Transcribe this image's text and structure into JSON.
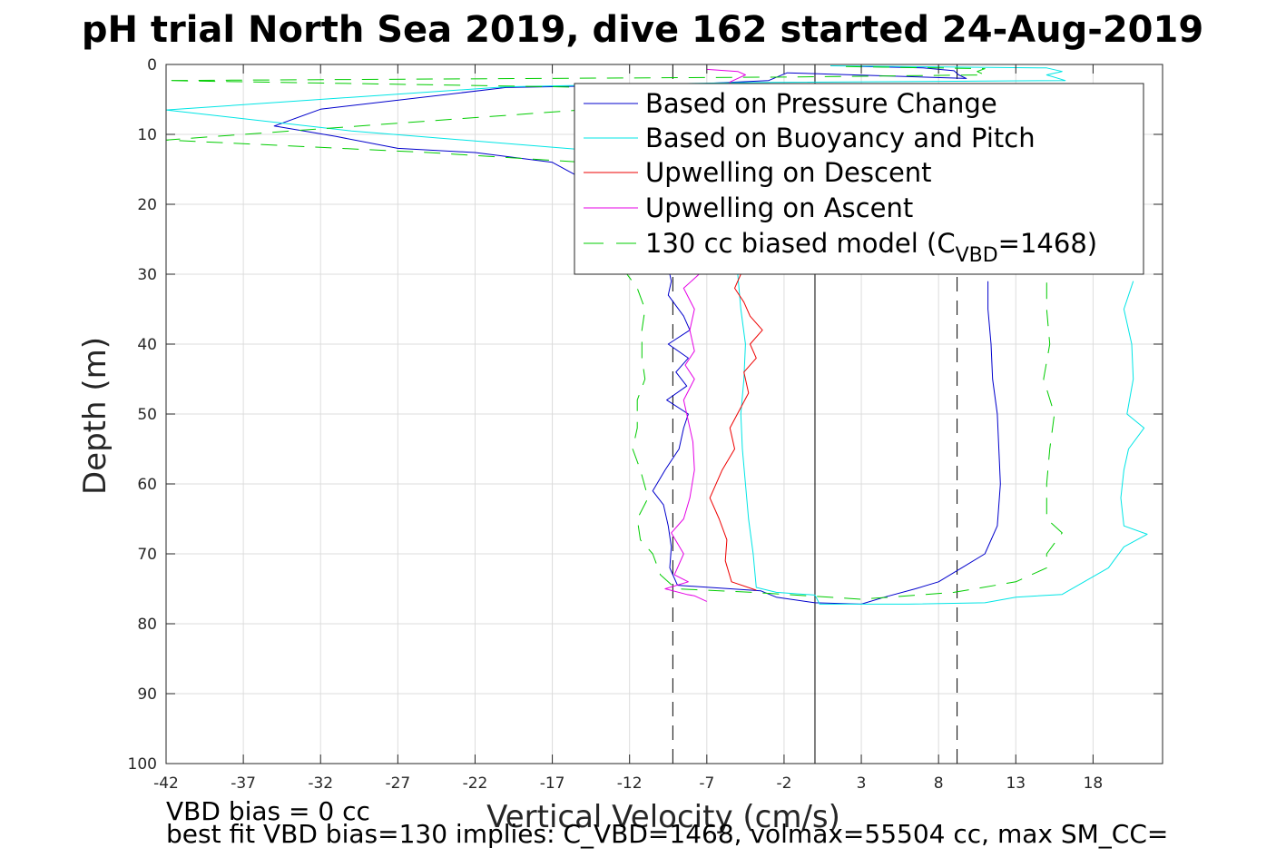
{
  "chart_data": {
    "type": "line",
    "title": "pH trial North Sea 2019, dive 162 started 24-Aug-2019",
    "xlabel": "Vertical Velocity (cm/s)",
    "ylabel": "Depth (m)",
    "xlim": [
      -42,
      22.5
    ],
    "ylim": [
      0,
      100
    ],
    "y_reversed": true,
    "grid": true,
    "legend_position": "top-right",
    "xticks": [
      -42,
      -37,
      -32,
      -27,
      -22,
      -17,
      -12,
      -7,
      -2,
      3,
      8,
      13,
      18
    ],
    "yticks": [
      0,
      10,
      20,
      30,
      40,
      50,
      60,
      70,
      80,
      90,
      100
    ],
    "xtick_labels": [
      "-42",
      "-37",
      "-32",
      "-27",
      "-22",
      "-17",
      "-12",
      "-7",
      "-2",
      "3",
      "8",
      "13",
      "18"
    ],
    "ytick_labels": [
      "0",
      "10",
      "20",
      "30",
      "40",
      "50",
      "60",
      "70",
      "80",
      "90",
      "100"
    ],
    "reference_lines": [
      {
        "x": 0,
        "style": "solid",
        "color": "#000000"
      },
      {
        "x": -9.2,
        "style": "dashed",
        "color": "#000000"
      },
      {
        "x": 9.2,
        "style": "dashed",
        "color": "#000000"
      }
    ],
    "series": [
      {
        "name": "Based on Pressure Change",
        "color": "#0000cc",
        "dash": "solid",
        "points": [
          [
            3,
            0.3
          ],
          [
            7,
            0.5
          ],
          [
            9,
            0.9
          ],
          [
            9.3,
            1.5
          ],
          [
            9.8,
            2
          ],
          [
            -1.8,
            1.2
          ],
          [
            -3,
            2.3
          ],
          [
            -8,
            2.8
          ],
          [
            -20,
            3.3
          ],
          [
            -32,
            6.4
          ],
          [
            -35,
            8.8
          ],
          [
            -31,
            10.3
          ],
          [
            -27,
            12
          ],
          [
            -22,
            12.6
          ],
          [
            -17,
            14
          ],
          [
            -14.5,
            17
          ],
          [
            -11,
            22
          ],
          [
            -10,
            26
          ],
          [
            -9.5,
            29
          ],
          [
            -9.3,
            31
          ],
          [
            -9.5,
            33
          ],
          [
            -8.5,
            36
          ],
          [
            -8.1,
            38
          ],
          [
            -9.5,
            40
          ],
          [
            -8.2,
            42
          ],
          [
            -9,
            44
          ],
          [
            -8.3,
            46
          ],
          [
            -9.6,
            48
          ],
          [
            -8.2,
            50
          ],
          [
            -8.5,
            52
          ],
          [
            -8.8,
            55
          ],
          [
            -9.7,
            58
          ],
          [
            -10.5,
            61
          ],
          [
            -9.8,
            63
          ],
          [
            -9.5,
            66
          ],
          [
            -9.3,
            69
          ],
          [
            -9.4,
            72
          ],
          [
            -8.9,
            74.5
          ],
          [
            -3.5,
            75.3
          ],
          [
            -2.5,
            76.2
          ],
          [
            0,
            77
          ],
          [
            3,
            77.2
          ],
          [
            4.5,
            76.2
          ],
          [
            6.5,
            75
          ],
          [
            8,
            74
          ],
          [
            9.5,
            72
          ],
          [
            11,
            70
          ],
          [
            11.8,
            66
          ],
          [
            12,
            60
          ],
          [
            11.9,
            55
          ],
          [
            11.8,
            50
          ],
          [
            11.5,
            45
          ],
          [
            11.4,
            40
          ],
          [
            11.2,
            35
          ],
          [
            11.2,
            31
          ]
        ]
      },
      {
        "name": "Based on Buoyancy and Pitch",
        "color": "#00e5e5",
        "dash": "solid",
        "points": [
          [
            1,
            0.2
          ],
          [
            15,
            0.5
          ],
          [
            16,
            1
          ],
          [
            15,
            1.5
          ],
          [
            16.2,
            2.3
          ],
          [
            -5,
            2.6
          ],
          [
            -20,
            3.2
          ],
          [
            -42,
            6.5
          ],
          [
            -30,
            9.5
          ],
          [
            -15,
            12.2
          ],
          [
            -14,
            13
          ],
          [
            -13,
            20
          ],
          [
            -7,
            25
          ],
          [
            -5,
            30
          ],
          [
            -4.8,
            35
          ],
          [
            -4.5,
            40
          ],
          [
            -4.6,
            45
          ],
          [
            -4.8,
            50
          ],
          [
            -4.7,
            55
          ],
          [
            -4.5,
            60
          ],
          [
            -4.3,
            65
          ],
          [
            -4,
            70
          ],
          [
            -3.8,
            74.8
          ],
          [
            -2.5,
            75.5
          ],
          [
            0,
            75.9
          ],
          [
            0.3,
            77.2
          ],
          [
            6,
            77.2
          ],
          [
            11,
            77
          ],
          [
            13,
            76.2
          ],
          [
            16,
            75.8
          ],
          [
            19,
            72
          ],
          [
            20,
            69
          ],
          [
            21.5,
            67.2
          ],
          [
            20,
            66
          ],
          [
            19.8,
            62
          ],
          [
            20,
            58
          ],
          [
            20.3,
            55
          ],
          [
            21.3,
            52
          ],
          [
            20.2,
            50
          ],
          [
            20.6,
            45
          ],
          [
            20.5,
            40
          ],
          [
            20,
            35
          ],
          [
            20.6,
            31
          ]
        ]
      },
      {
        "name": "Upwelling on Descent",
        "color": "#ee0000",
        "dash": "solid",
        "points": [
          [
            -4.8,
            30
          ],
          [
            -5.2,
            32
          ],
          [
            -4.6,
            34
          ],
          [
            -4.2,
            36
          ],
          [
            -3.4,
            38
          ],
          [
            -4.2,
            40
          ],
          [
            -3.8,
            42
          ],
          [
            -4.6,
            44
          ],
          [
            -4.3,
            47
          ],
          [
            -5.5,
            52
          ],
          [
            -5.2,
            55
          ],
          [
            -6,
            58
          ],
          [
            -6.8,
            62
          ],
          [
            -6.2,
            65
          ],
          [
            -5.7,
            68
          ],
          [
            -5.8,
            71
          ],
          [
            -5.4,
            74
          ],
          [
            -3.8,
            75.2
          ]
        ]
      },
      {
        "name": "Upwelling on Ascent",
        "color": "#e500e5",
        "dash": "solid",
        "points": [
          [
            -7,
            0.7
          ],
          [
            -5,
            1
          ],
          [
            -4.5,
            1.5
          ],
          [
            -5.5,
            2.5
          ],
          [
            -7.5,
            30
          ],
          [
            -8.5,
            32
          ],
          [
            -7.8,
            35
          ],
          [
            -8.1,
            38
          ],
          [
            -7.8,
            41
          ],
          [
            -8.4,
            43
          ],
          [
            -7.8,
            45
          ],
          [
            -8.5,
            48
          ],
          [
            -8.2,
            51
          ],
          [
            -7.9,
            54
          ],
          [
            -7.8,
            58
          ],
          [
            -8.1,
            62
          ],
          [
            -8.5,
            65
          ],
          [
            -9.3,
            67
          ],
          [
            -8.5,
            70
          ],
          [
            -9.1,
            73
          ],
          [
            -8.2,
            74
          ],
          [
            -9.7,
            75
          ],
          [
            -8.3,
            75.8
          ],
          [
            -7.8,
            76
          ],
          [
            -7,
            76.8
          ]
        ]
      },
      {
        "name": "130 cc biased model (C",
        "color": "#00cc00",
        "dash": "dashed",
        "points": [
          [
            2,
            0.3
          ],
          [
            11,
            0.6
          ],
          [
            10.5,
            1
          ],
          [
            11,
            1.5
          ],
          [
            -2,
            1.8
          ],
          [
            -42,
            2.3
          ],
          [
            -8,
            3.5
          ],
          [
            -12,
            6
          ],
          [
            -42,
            10.8
          ],
          [
            -25,
            12.6
          ],
          [
            -15,
            14
          ],
          [
            -15,
            16
          ],
          [
            -14.5,
            20
          ],
          [
            -13.5,
            25
          ],
          [
            -12.5,
            29
          ],
          [
            -11.5,
            32
          ],
          [
            -11,
            35
          ],
          [
            -11.2,
            38
          ],
          [
            -11.2,
            42
          ],
          [
            -11,
            45
          ],
          [
            -11.5,
            48
          ],
          [
            -11.5,
            52
          ],
          [
            -11.8,
            55
          ],
          [
            -11.3,
            58
          ],
          [
            -10.8,
            62
          ],
          [
            -11.5,
            65
          ],
          [
            -11.3,
            68
          ],
          [
            -10.5,
            70
          ],
          [
            -10,
            73
          ],
          [
            -9,
            75
          ],
          [
            -4,
            75.5
          ],
          [
            3,
            76.5
          ],
          [
            9,
            75.5
          ],
          [
            13,
            74
          ],
          [
            15,
            72
          ],
          [
            15,
            70
          ],
          [
            16,
            67
          ],
          [
            15,
            65
          ],
          [
            15,
            60
          ],
          [
            15.2,
            55
          ],
          [
            15.5,
            50
          ],
          [
            14.8,
            45
          ],
          [
            15.2,
            40
          ],
          [
            15,
            35
          ],
          [
            15,
            31
          ]
        ]
      }
    ],
    "legend": {
      "series_names": [
        "Based on Pressure Change",
        "Based on Buoyancy and Pitch",
        "Upwelling on Descent",
        "Upwelling on Ascent",
        "130 cc biased model (C"
      ],
      "model_subscript": "VBD",
      "model_suffix": "=1468)"
    },
    "annotations": [
      "VBD bias = 0 cc",
      "best fit VBD bias=130 implies: C_VBD=1468, volmax=55504 cc, max SM_CC="
    ]
  }
}
